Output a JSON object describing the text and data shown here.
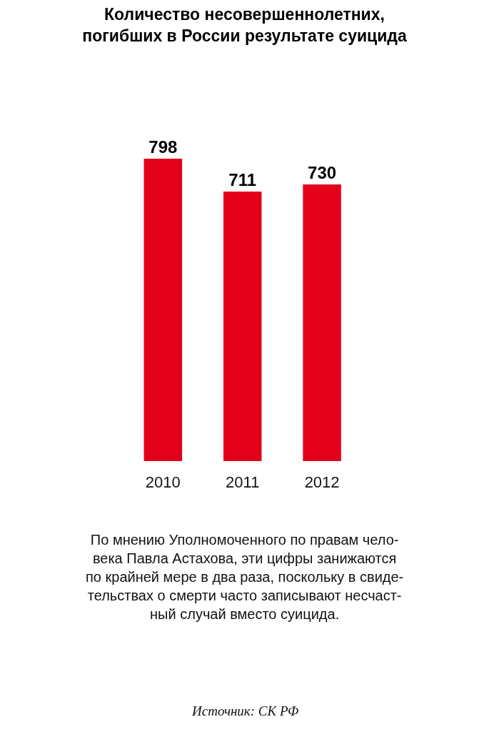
{
  "chart_data": {
    "type": "bar",
    "title": "Количество несовершеннолетних,\nпогибших в России результате суицида",
    "categories": [
      "2010",
      "2011",
      "2012"
    ],
    "values": [
      798,
      711,
      730
    ],
    "color": "#e2001a",
    "data_labels": true,
    "grid": false,
    "annotations": [
      "По мнению Уполномоченного по правам чело-\nвека Павла Астахова, эти цифры занижаются\nпо крайней мере в два раза, поскольку в свиде-\nтельствах о смерти часто записывают несчаст-\nный случай вместо суицида.",
      "Источник: СК РФ"
    ]
  }
}
